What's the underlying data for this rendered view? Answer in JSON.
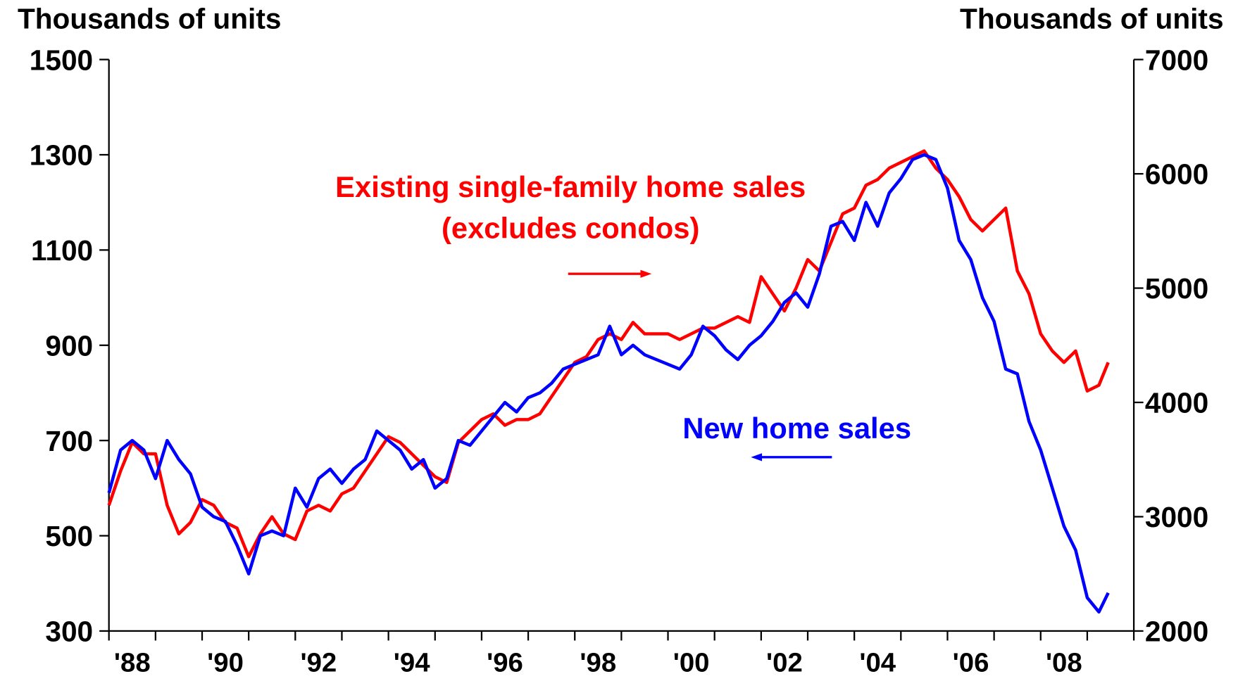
{
  "chart_data": {
    "type": "line",
    "ylabel": "Thousands of units",
    "y2label": "Thousands of units",
    "xlim": [
      1988,
      2010
    ],
    "xticks": [
      {
        "value": 1988.5,
        "label": "'88"
      },
      {
        "value": 1990.5,
        "label": "'90"
      },
      {
        "value": 1992.5,
        "label": "'92"
      },
      {
        "value": 1994.5,
        "label": "'94"
      },
      {
        "value": 1996.5,
        "label": "'96"
      },
      {
        "value": 1998.5,
        "label": "'98"
      },
      {
        "value": 2000.5,
        "label": "'00"
      },
      {
        "value": 2002.5,
        "label": "'02"
      },
      {
        "value": 2004.5,
        "label": "'04"
      },
      {
        "value": 2006.5,
        "label": "'06"
      },
      {
        "value": 2008.5,
        "label": "'08"
      }
    ],
    "xtick_marks": [
      1988,
      1989,
      1990,
      1991,
      1992,
      1993,
      1994,
      1995,
      1996,
      1997,
      1998,
      1999,
      2000,
      2001,
      2002,
      2003,
      2004,
      2005,
      2006,
      2007,
      2008,
      2009,
      2010
    ],
    "ylim": [
      300,
      1500
    ],
    "yticks": [
      300,
      500,
      700,
      900,
      1100,
      1300,
      1500
    ],
    "y2lim": [
      2000,
      7000
    ],
    "y2ticks": [
      2000,
      3000,
      4000,
      5000,
      6000,
      7000
    ],
    "x": [
      1988,
      1988.25,
      1988.5,
      1988.75,
      1989,
      1989.25,
      1989.5,
      1989.75,
      1990,
      1990.25,
      1990.5,
      1990.75,
      1991,
      1991.25,
      1991.5,
      1991.75,
      1992,
      1992.25,
      1992.5,
      1992.75,
      1993,
      1993.25,
      1993.5,
      1993.75,
      1994,
      1994.25,
      1994.5,
      1994.75,
      1995,
      1995.25,
      1995.5,
      1995.75,
      1996,
      1996.25,
      1996.5,
      1996.75,
      1997,
      1997.25,
      1997.5,
      1997.75,
      1998,
      1998.25,
      1998.5,
      1998.75,
      1999,
      1999.25,
      1999.5,
      1999.75,
      2000,
      2000.25,
      2000.5,
      2000.75,
      2001,
      2001.25,
      2001.5,
      2001.75,
      2002,
      2002.25,
      2002.5,
      2002.75,
      2003,
      2003.25,
      2003.5,
      2003.75,
      2004,
      2004.25,
      2004.5,
      2004.75,
      2005,
      2005.25,
      2005.5,
      2005.75,
      2006,
      2006.25,
      2006.5,
      2006.75,
      2007,
      2007.25,
      2007.5,
      2007.75,
      2008,
      2008.25,
      2008.5,
      2008.75,
      2009,
      2009.25,
      2009.45
    ],
    "series": [
      {
        "name": "New home sales",
        "color": "#0000ff",
        "axis": "y",
        "values": [
          590,
          680,
          700,
          680,
          620,
          700,
          660,
          630,
          560,
          540,
          530,
          480,
          420,
          500,
          510,
          500,
          600,
          560,
          620,
          640,
          610,
          640,
          660,
          720,
          700,
          680,
          640,
          660,
          600,
          620,
          700,
          690,
          720,
          750,
          780,
          760,
          790,
          800,
          820,
          850,
          860,
          870,
          880,
          940,
          880,
          900,
          880,
          870,
          860,
          850,
          880,
          940,
          920,
          890,
          870,
          900,
          920,
          950,
          990,
          1010,
          980,
          1050,
          1150,
          1160,
          1120,
          1200,
          1150,
          1220,
          1250,
          1290,
          1300,
          1290,
          1230,
          1120,
          1080,
          1000,
          950,
          850,
          840,
          740,
          680,
          600,
          520,
          470,
          370,
          340,
          380
        ]
      },
      {
        "name": "Existing single-family home sales (excludes condos)",
        "color": "#ff0000",
        "axis": "y2",
        "values": [
          3100,
          3400,
          3650,
          3550,
          3550,
          3100,
          2850,
          2950,
          3150,
          3100,
          2950,
          2900,
          2650,
          2850,
          3000,
          2850,
          2800,
          3050,
          3100,
          3050,
          3200,
          3250,
          3400,
          3550,
          3700,
          3650,
          3550,
          3450,
          3350,
          3300,
          3650,
          3750,
          3850,
          3900,
          3800,
          3850,
          3850,
          3900,
          4050,
          4200,
          4350,
          4400,
          4550,
          4600,
          4550,
          4700,
          4600,
          4600,
          4600,
          4550,
          4600,
          4650,
          4650,
          4700,
          4750,
          4700,
          5100,
          4950,
          4800,
          5000,
          5250,
          5150,
          5400,
          5650,
          5700,
          5900,
          5950,
          6050,
          6100,
          6150,
          6200,
          6050,
          5950,
          5800,
          5600,
          5500,
          5600,
          5700,
          5150,
          4950,
          4600,
          4450,
          4350,
          4450,
          4100,
          4150,
          4350
        ]
      }
    ],
    "annotations": [
      "Existing single-family home sales",
      "(excludes condos)",
      "New home sales"
    ]
  }
}
